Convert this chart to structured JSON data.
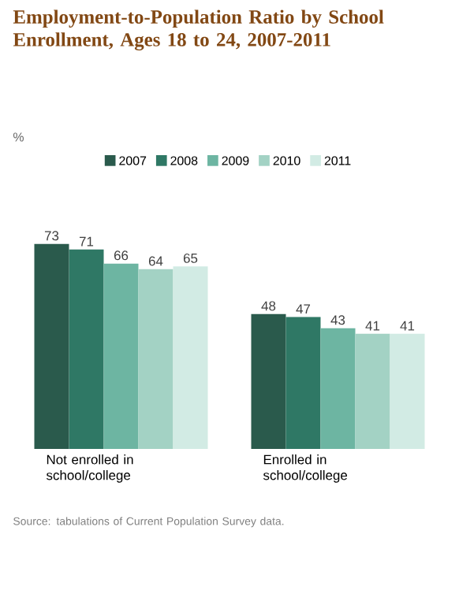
{
  "chart_data": {
    "type": "bar",
    "title": "Employment-to-Population Ratio by School Enrollment, Ages 18 to 24, 2007-2011",
    "categories": [
      "Not enrolled in school/college",
      "Enrolled in school/college"
    ],
    "series": [
      {
        "name": "2007",
        "color": "#2a5a4c",
        "values": [
          73,
          48
        ]
      },
      {
        "name": "2008",
        "color": "#2f7865",
        "values": [
          71,
          47
        ]
      },
      {
        "name": "2009",
        "color": "#6db5a2",
        "values": [
          66,
          43
        ]
      },
      {
        "name": "2010",
        "color": "#a3d2c4",
        "values": [
          64,
          41
        ]
      },
      {
        "name": "2011",
        "color": "#d2ebe4",
        "values": [
          65,
          41
        ]
      }
    ],
    "data_labels": true,
    "legend": "top",
    "annotations": [
      "%",
      "Source: tabulations of Current Population Survey data."
    ]
  }
}
